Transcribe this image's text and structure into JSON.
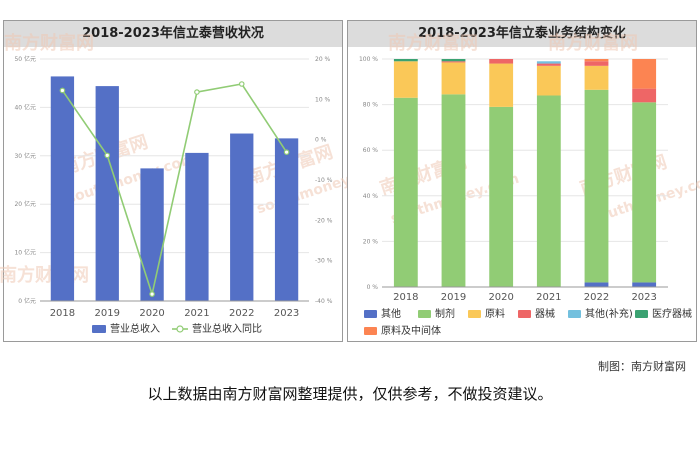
{
  "caption": "制图：南方财富网",
  "disclaimer": "以上数据由南方财富网整理提供，仅供参考，不做投资建议。",
  "watermark": {
    "cn": "南方财富网",
    "en": "southmoney.com"
  },
  "chart_data": [
    {
      "type": "bar",
      "title": "2018-2023年信立泰营收状况",
      "categories": [
        "2018",
        "2019",
        "2020",
        "2021",
        "2022",
        "2023"
      ],
      "series": [
        {
          "name": "营业总收入",
          "type": "bar",
          "axis": "left",
          "values": [
            46.4,
            44.4,
            27.4,
            30.6,
            34.6,
            33.6
          ],
          "color": "#5470c6"
        },
        {
          "name": "营业总收入同比",
          "type": "line",
          "axis": "right",
          "values": [
            12.2,
            -3.9,
            -38.3,
            11.8,
            13.8,
            -3.1
          ],
          "color": "#91cc75"
        }
      ],
      "left_axis": {
        "ticks": [
          "0 亿元",
          "10 亿元",
          "20 亿元",
          "30 亿元",
          "40 亿元",
          "50 亿元"
        ],
        "ylim": [
          0,
          50
        ]
      },
      "right_axis": {
        "ticks": [
          "-40 %",
          "-30 %",
          "-20 %",
          "-10 %",
          "0 %",
          "10 %",
          "20 %"
        ],
        "ylim": [
          -40,
          20
        ]
      },
      "grid": true,
      "legend": "bottom"
    },
    {
      "type": "bar",
      "stacked": true,
      "title": "2018-2023年信立泰业务结构变化",
      "categories": [
        "2018",
        "2019",
        "2020",
        "2021",
        "2022",
        "2023"
      ],
      "series": [
        {
          "name": "其他",
          "color": "#5470c6",
          "values": [
            0,
            0,
            0,
            0,
            2,
            2
          ]
        },
        {
          "name": "制剂",
          "color": "#91cc75",
          "values": [
            83,
            84.5,
            79,
            84,
            84.5,
            79
          ]
        },
        {
          "name": "原料",
          "color": "#fac858",
          "values": [
            16,
            14,
            19,
            13,
            10.5,
            0
          ]
        },
        {
          "name": "器械",
          "color": "#ee6666",
          "values": [
            0,
            0.5,
            2,
            1,
            2,
            6
          ]
        },
        {
          "name": "其他(补充)",
          "color": "#73c0de",
          "values": [
            0,
            0,
            0,
            1,
            0,
            0
          ]
        },
        {
          "name": "医疗器械",
          "color": "#3ba272",
          "values": [
            1,
            1,
            0,
            0,
            0,
            0
          ]
        },
        {
          "name": "原料及中间体",
          "color": "#fc8452",
          "values": [
            0,
            0,
            0,
            0,
            1,
            13
          ]
        }
      ],
      "y_ticks": [
        "0 %",
        "20 %",
        "40 %",
        "60 %",
        "80 %",
        "100 %"
      ],
      "ylim": [
        0,
        100
      ],
      "grid": true,
      "legend": "bottom"
    }
  ]
}
